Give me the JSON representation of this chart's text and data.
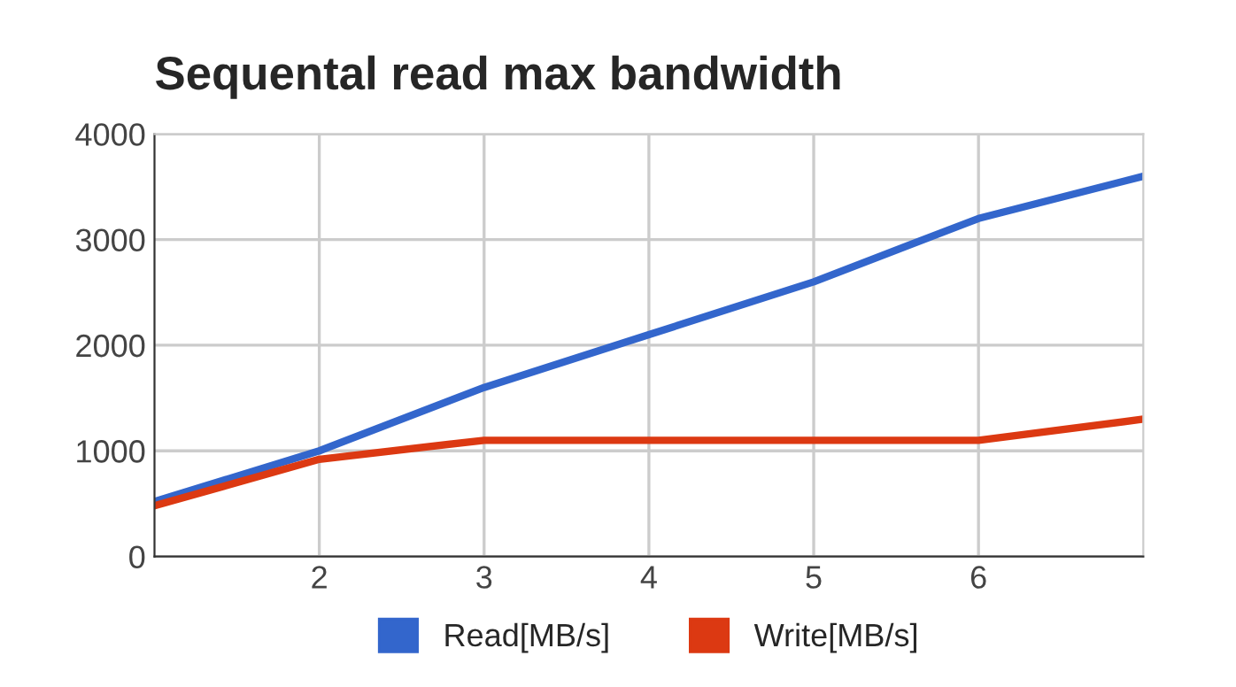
{
  "chart_data": {
    "type": "line",
    "title": "Sequental read max bandwidth",
    "x": [
      1,
      2,
      3,
      4,
      5,
      6,
      7
    ],
    "series": [
      {
        "name": "Read[MB/s]",
        "color": "#3366cc",
        "values": [
          520,
          1000,
          1600,
          2100,
          2600,
          3200,
          3600
        ]
      },
      {
        "name": "Write[MB/s]",
        "color": "#dc3912",
        "values": [
          480,
          920,
          1100,
          1100,
          1100,
          1100,
          1300
        ]
      }
    ],
    "xlim": [
      1,
      7
    ],
    "xticks": [
      2,
      3,
      4,
      5,
      6
    ],
    "ylim": [
      0,
      4000
    ],
    "yticks": [
      0,
      1000,
      2000,
      3000,
      4000
    ],
    "grid": true,
    "legend": "bottom",
    "marker": "none",
    "line_style": "solid"
  }
}
